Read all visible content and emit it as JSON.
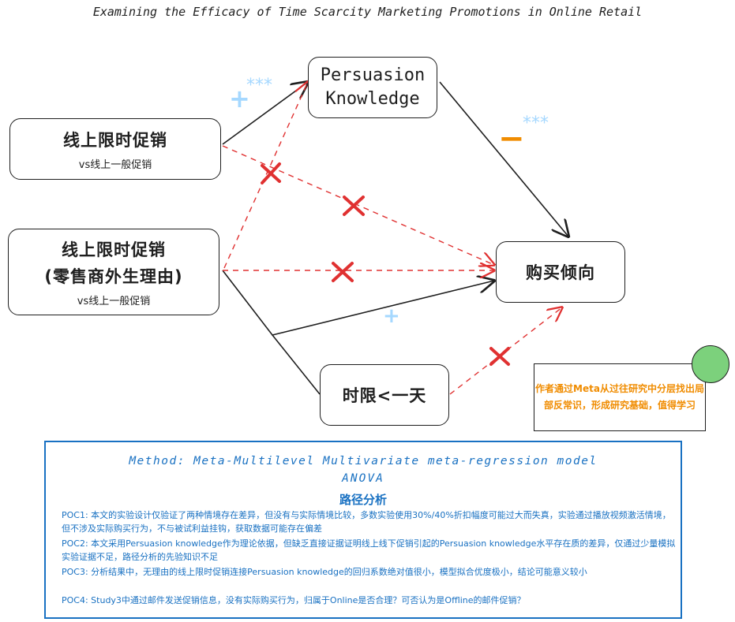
{
  "title": "Examining the Efficacy of Time Scarcity Marketing Promotions in Online Retail",
  "nodes": {
    "n1": {
      "line1": "线上限时促销",
      "line2": "vs线上一般促销"
    },
    "n2": {
      "line1": "线上限时促销",
      "line1b": "(零售商外生理由)",
      "line2": "vs线上一般促销"
    },
    "pk": {
      "line1": "Persuasion",
      "line2": "Knowledge"
    },
    "purchase": {
      "label": "购买倾向"
    },
    "time": {
      "label": "时限<一天"
    }
  },
  "signs": {
    "plus_pk": "+",
    "stars_pk": "***",
    "minus_pk": "−",
    "stars_minus": "***",
    "plus_purchase": "+"
  },
  "note": {
    "text": "作者通过Meta从过往研究中分层找出局部反常识，形成研究基础，值得学习"
  },
  "method": {
    "line1": "Method: Meta-Multilevel  Multivariate  meta-regression  model",
    "line2": "ANOVA",
    "line3": "路径分析",
    "poc1": "POC1: 本文的实验设计仅验证了两种情境存在差异，但没有与实际情境比较，多数实验使用30%/40%折扣幅度可能过大而失真，实验通过播放视频激活情境，但不涉及实际购买行为，不与被试利益挂钩，获取数据可能存在偏差",
    "poc2": "POC2: 本文采用Persuasion  knowledge作为理论依据，但缺乏直接证据证明线上线下促销引起的Persuasion knowledge水平存在质的差异，仅通过少量模拟实验证据不足，路径分析的先验知识不足",
    "poc3": "POC3: 分析结果中，无理由的线上限时促销连接Persuasion  knowledge的回归系数绝对值很小，模型拟合优度极小，结论可能意义较小",
    "poc4": "POC4: Study3中通过邮件发送促销信息，没有实际购买行为，归属于Online是否合理？可否认为是Offline的邮件促销？"
  },
  "colors": {
    "ink": "#1e1e1e",
    "red": "#e03131",
    "blue": "#a5d8ff",
    "orange": "#f08c00",
    "panel": "#1971c2",
    "green": "#7cd17c"
  }
}
